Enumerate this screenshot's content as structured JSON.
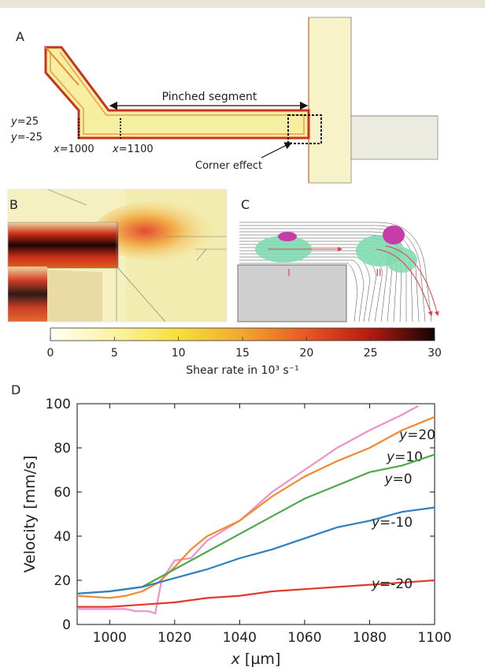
{
  "panel_a": {
    "label": "A",
    "pinched_segment": "Pinched segment",
    "y_top": "25",
    "y_bottom": "-25",
    "x_left": "1000",
    "x_right": "1100",
    "corner_effect": "Corner effect",
    "y_prefix": "y",
    "x_prefix": "x"
  },
  "panel_b": {
    "label": "B"
  },
  "panel_c": {
    "label": "C",
    "marker_1": "I",
    "marker_2": "II"
  },
  "colorbar": {
    "ticks": [
      "0",
      "5",
      "10",
      "15",
      "20",
      "25",
      "30"
    ],
    "label": "Shear rate in 10³ s⁻¹"
  },
  "colors": {
    "channel_fill": "#f7f0a8",
    "channel_edge": "#c8341c",
    "cell_fill": "#7fdcb0",
    "cell_bulge": "#c83ca8",
    "wall_gray": "#cfcfcf"
  },
  "chart_data": {
    "panel_label": "D",
    "type": "line",
    "xlabel": "x [µm]",
    "ylabel": "Velocity [mm/s]",
    "xlim": [
      990,
      1100
    ],
    "ylim": [
      0,
      100
    ],
    "xticks": [
      1000,
      1020,
      1040,
      1060,
      1080,
      1100
    ],
    "yticks": [
      0,
      20,
      40,
      60,
      80,
      100
    ],
    "grid": false,
    "series": [
      {
        "name": "y=20",
        "color": "#f08fc8",
        "points": [
          [
            990,
            7
          ],
          [
            1000,
            7
          ],
          [
            1005,
            7
          ],
          [
            1008,
            6
          ],
          [
            1012,
            6
          ],
          [
            1014,
            5
          ],
          [
            1016,
            20
          ],
          [
            1020,
            29
          ],
          [
            1025,
            30
          ],
          [
            1030,
            38
          ],
          [
            1040,
            47
          ],
          [
            1050,
            60
          ],
          [
            1060,
            70
          ],
          [
            1070,
            80
          ],
          [
            1080,
            88
          ],
          [
            1090,
            95
          ],
          [
            1095,
            99
          ]
        ]
      },
      {
        "name": "y=10",
        "color": "#f08a2c",
        "points": [
          [
            990,
            13
          ],
          [
            1000,
            12
          ],
          [
            1005,
            13
          ],
          [
            1010,
            15
          ],
          [
            1015,
            19
          ],
          [
            1020,
            26
          ],
          [
            1025,
            34
          ],
          [
            1030,
            40
          ],
          [
            1040,
            47
          ],
          [
            1050,
            58
          ],
          [
            1060,
            67
          ],
          [
            1070,
            74
          ],
          [
            1080,
            80
          ],
          [
            1090,
            88
          ],
          [
            1100,
            94
          ]
        ]
      },
      {
        "name": "y=0",
        "color": "#4caa4c",
        "points": [
          [
            990,
            14
          ],
          [
            1000,
            15
          ],
          [
            1010,
            17
          ],
          [
            1020,
            25
          ],
          [
            1030,
            33
          ],
          [
            1040,
            41
          ],
          [
            1050,
            49
          ],
          [
            1060,
            57
          ],
          [
            1070,
            63
          ],
          [
            1080,
            69
          ],
          [
            1090,
            72
          ],
          [
            1100,
            77
          ]
        ]
      },
      {
        "name": "y=-10",
        "color": "#2f7ec0",
        "points": [
          [
            990,
            14
          ],
          [
            1000,
            15
          ],
          [
            1010,
            17
          ],
          [
            1020,
            21
          ],
          [
            1030,
            25
          ],
          [
            1040,
            30
          ],
          [
            1050,
            34
          ],
          [
            1060,
            39
          ],
          [
            1070,
            44
          ],
          [
            1080,
            47
          ],
          [
            1090,
            51
          ],
          [
            1100,
            53
          ]
        ]
      },
      {
        "name": "y=-20",
        "color": "#e03a2c",
        "points": [
          [
            990,
            8
          ],
          [
            1000,
            8
          ],
          [
            1010,
            9
          ],
          [
            1020,
            10
          ],
          [
            1030,
            12
          ],
          [
            1040,
            13
          ],
          [
            1050,
            15
          ],
          [
            1060,
            16
          ],
          [
            1070,
            17
          ],
          [
            1080,
            18
          ],
          [
            1090,
            19
          ],
          [
            1100,
            20
          ]
        ]
      }
    ]
  }
}
